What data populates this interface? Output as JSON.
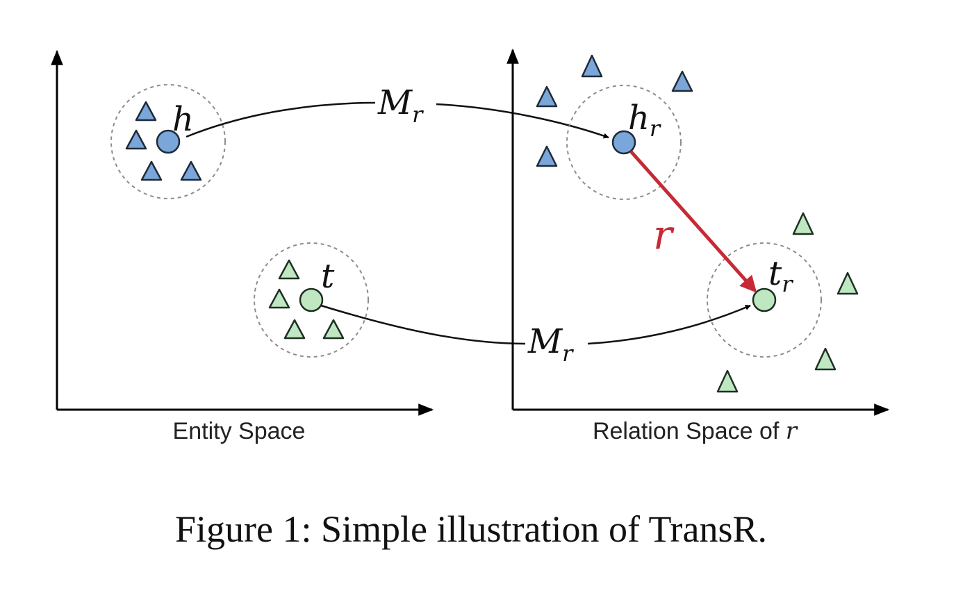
{
  "entity_space_label": "Entity Space",
  "relation_space_label_prefix": "Relation Space of ",
  "relation_space_label_var": "r",
  "head_label": "h",
  "tail_label": "t",
  "head_proj_label": {
    "base": "h",
    "sub": "r"
  },
  "tail_proj_label": {
    "base": "t",
    "sub": "r"
  },
  "mapping_label": {
    "base": "M",
    "sub": "r"
  },
  "relation_vector_label": "r",
  "caption": "Figure 1: Simple illustration of TransR.",
  "colors": {
    "head_fill": "#7aa6d9",
    "tail_fill": "#bfe8c2",
    "relation_arrow": "#c62a35"
  }
}
